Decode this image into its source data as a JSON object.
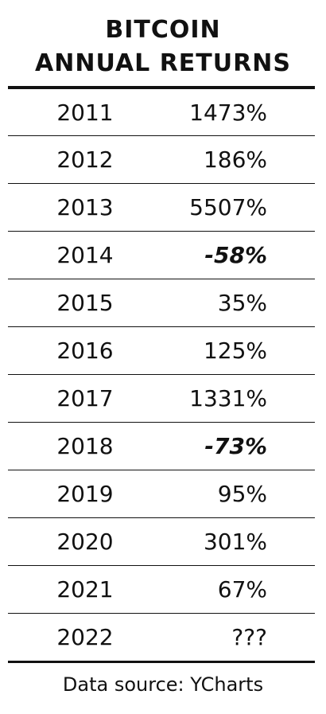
{
  "header": {
    "title": [
      "BITCOIN",
      "ANNUAL RETURNS"
    ]
  },
  "table": {
    "rows": [
      {
        "year": "2011",
        "return": "1473%"
      },
      {
        "year": "2012",
        "return": "186%"
      },
      {
        "year": "2013",
        "return": "5507%"
      },
      {
        "year": "2014",
        "return": "-58%",
        "emphasis": true
      },
      {
        "year": "2015",
        "return": "35%"
      },
      {
        "year": "2016",
        "return": "125%"
      },
      {
        "year": "2017",
        "return": "1331%"
      },
      {
        "year": "2018",
        "return": "-73%",
        "emphasis": true
      },
      {
        "year": "2019",
        "return": "95%"
      },
      {
        "year": "2020",
        "return": "301%"
      },
      {
        "year": "2021",
        "return": "67%"
      },
      {
        "year": "2022",
        "return": "???"
      }
    ]
  },
  "footer": {
    "source": "Data source: YCharts"
  }
}
